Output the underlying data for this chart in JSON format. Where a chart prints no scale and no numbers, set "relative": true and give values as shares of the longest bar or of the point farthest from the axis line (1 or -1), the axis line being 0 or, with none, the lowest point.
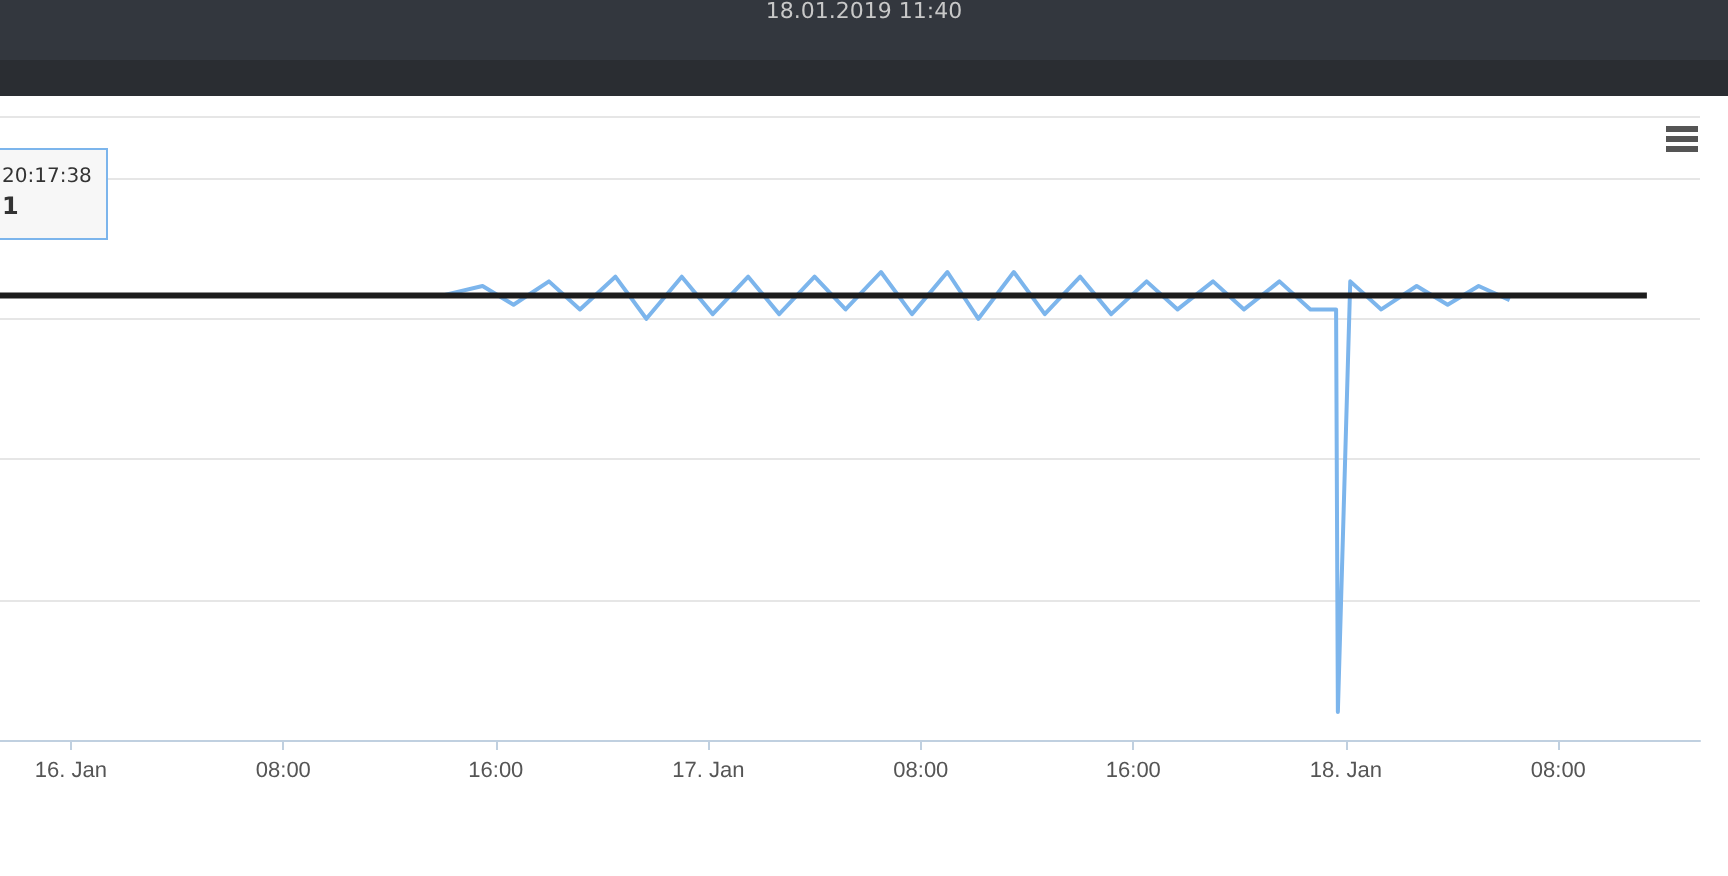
{
  "chart_data": {
    "type": "line",
    "title": "18.01.2019 11:40",
    "relative": true,
    "grid": "y",
    "annotations": [
      "20:17:38",
      "1"
    ],
    "xlim": [
      "2019-01-15T21:20",
      "2019-01-18T13:20"
    ],
    "xticks": [
      {
        "value": "2019-01-16T00:00",
        "label": "16. Jan"
      },
      {
        "value": "2019-01-16T08:00",
        "label": "08:00"
      },
      {
        "value": "2019-01-16T16:00",
        "label": "16:00"
      },
      {
        "value": "2019-01-17T00:00",
        "label": "17. Jan"
      },
      {
        "value": "2019-01-17T08:00",
        "label": "08:00"
      },
      {
        "value": "2019-01-17T16:00",
        "label": "16:00"
      },
      {
        "value": "2019-01-18T00:00",
        "label": "18. Jan"
      },
      {
        "value": "2019-01-18T08:00",
        "label": "08:00"
      }
    ],
    "series": [
      {
        "color": "#7cb5ec",
        "x": [
          "2019-01-16T14:00",
          "2019-01-16T15:30",
          "2019-01-16T16:40",
          "2019-01-16T18:00",
          "2019-01-16T19:10",
          "2019-01-16T20:30",
          "2019-01-16T21:40",
          "2019-01-16T23:00",
          "2019-01-17T00:10",
          "2019-01-17T01:30",
          "2019-01-17T02:40",
          "2019-01-17T04:00",
          "2019-01-17T05:10",
          "2019-01-17T06:30",
          "2019-01-17T07:40",
          "2019-01-17T09:00",
          "2019-01-17T10:10",
          "2019-01-17T11:30",
          "2019-01-17T12:40",
          "2019-01-17T14:00",
          "2019-01-17T15:10",
          "2019-01-17T16:30",
          "2019-01-17T17:40",
          "2019-01-17T19:00",
          "2019-01-17T20:10",
          "2019-01-17T21:30",
          "2019-01-17T22:40",
          "2019-01-17T23:38",
          "2019-01-17T23:42",
          "2019-01-18T00:10",
          "2019-01-18T01:20",
          "2019-01-18T02:40",
          "2019-01-18T03:50",
          "2019-01-18T05:00",
          "2019-01-18T06:10"
        ],
        "values": [
          0.95,
          0.97,
          0.93,
          0.98,
          0.92,
          0.99,
          0.9,
          0.99,
          0.91,
          0.99,
          0.91,
          0.99,
          0.92,
          1.0,
          0.91,
          1.0,
          0.9,
          1.0,
          0.91,
          0.99,
          0.91,
          0.98,
          0.92,
          0.98,
          0.92,
          0.98,
          0.92,
          0.92,
          0.06,
          0.98,
          0.92,
          0.97,
          0.93,
          0.97,
          0.94
        ]
      },
      {
        "color": "#1c1c1c",
        "x": [
          "2019-01-15T21:20",
          "2019-01-18T11:20"
        ],
        "values": [
          0.95,
          0.95
        ]
      }
    ]
  }
}
